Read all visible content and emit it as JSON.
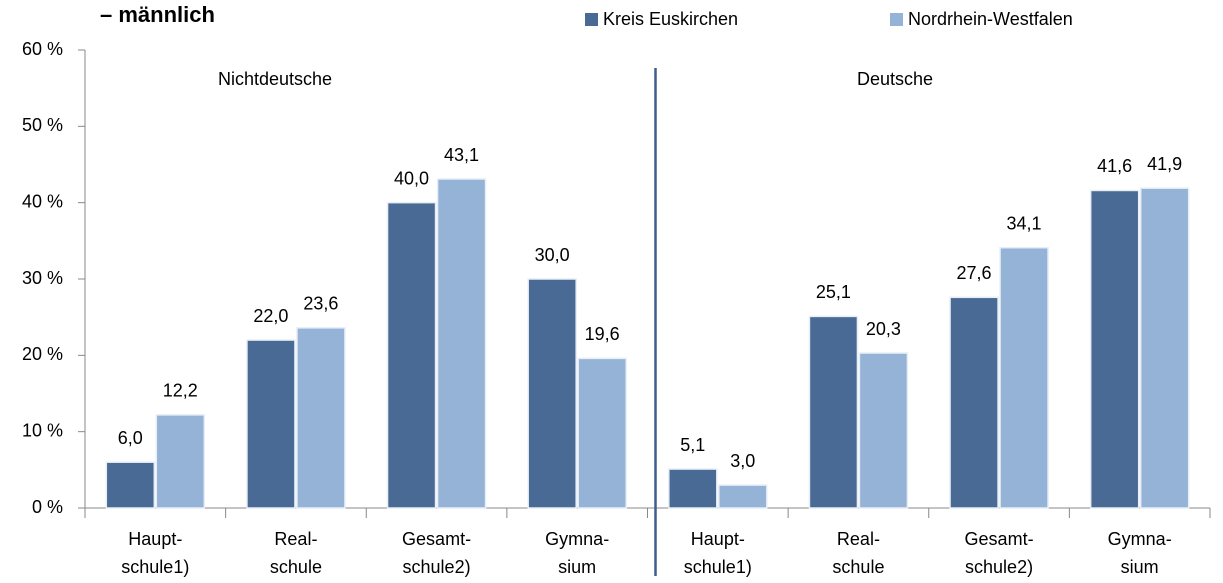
{
  "chart_data": {
    "type": "bar",
    "title": "– männlich",
    "categories": [
      "Haupt-\nschule1)",
      "Real-\nschule",
      "Gesamt-\nschule2)",
      "Gymna-\nsium",
      "Haupt-\nschule1)",
      "Real-\nschule",
      "Gesamt-\nschule2)",
      "Gymna-\nsium"
    ],
    "group_labels": [
      "Nichtdeutsche",
      "Deutsche"
    ],
    "series": [
      {
        "name": "Kreis Euskirchen",
        "color": "#4a6a96",
        "values": [
          6.0,
          22.0,
          40.0,
          30.0,
          5.1,
          25.1,
          27.6,
          41.6
        ],
        "value_labels": [
          "6,0",
          "22,0",
          "40,0",
          "30,0",
          "5,1",
          "25,1",
          "27,6",
          "41,6"
        ]
      },
      {
        "name": "Nordrhein-Westfalen",
        "color": "#95b3d7",
        "values": [
          12.2,
          23.6,
          43.1,
          19.6,
          3.0,
          20.3,
          34.1,
          41.9
        ],
        "value_labels": [
          "12,2",
          "23,6",
          "43,1",
          "19,6",
          "3,0",
          "20,3",
          "34,1",
          "41,9"
        ]
      }
    ],
    "ylim": [
      0,
      60
    ],
    "yticks": [
      {
        "value": 0,
        "label": "0 %"
      },
      {
        "value": 10,
        "label": "10 %"
      },
      {
        "value": 20,
        "label": "20 %"
      },
      {
        "value": 30,
        "label": "30 %"
      },
      {
        "value": 40,
        "label": "40 %"
      },
      {
        "value": 50,
        "label": "50 %"
      },
      {
        "value": 60,
        "label": "60 %"
      }
    ],
    "legend": "top-right"
  }
}
